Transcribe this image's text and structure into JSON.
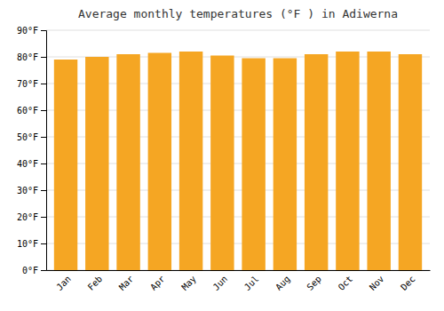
{
  "chart_data": {
    "type": "bar",
    "title": "Average monthly temperatures (°F ) in Adiwerna",
    "categories": [
      "Jan",
      "Feb",
      "Mar",
      "Apr",
      "May",
      "Jun",
      "Jul",
      "Aug",
      "Sep",
      "Oct",
      "Nov",
      "Dec"
    ],
    "values": [
      79.0,
      80.0,
      81.0,
      81.5,
      82.0,
      80.5,
      79.5,
      79.5,
      81.0,
      82.0,
      82.0,
      81.0
    ],
    "color": "#F5A623",
    "ylim": [
      0,
      90
    ],
    "yticks": [
      {
        "value": 0,
        "label": "0°F"
      },
      {
        "value": 10,
        "label": "10°F"
      },
      {
        "value": 20,
        "label": "20°F"
      },
      {
        "value": 30,
        "label": "30°F"
      },
      {
        "value": 40,
        "label": "40°F"
      },
      {
        "value": 50,
        "label": "50°F"
      },
      {
        "value": 60,
        "label": "60°F"
      },
      {
        "value": 70,
        "label": "70°F"
      },
      {
        "value": 80,
        "label": "80°F"
      },
      {
        "value": 90,
        "label": "90°F"
      }
    ],
    "grid": true
  }
}
